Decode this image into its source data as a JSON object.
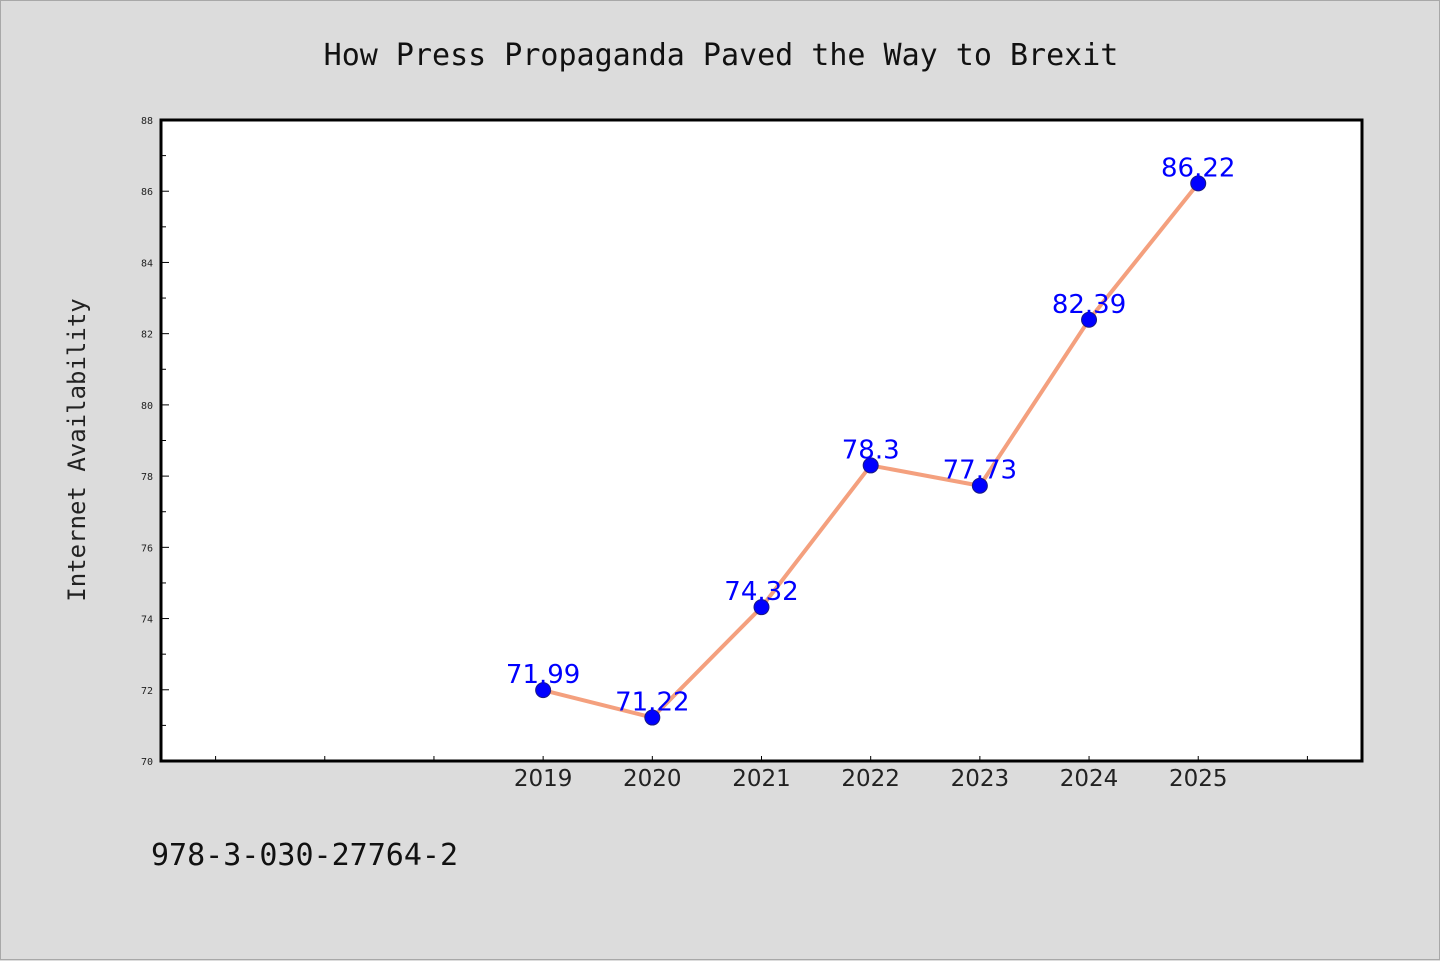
{
  "chart_data": {
    "type": "line",
    "title": "How Press Propaganda Paved the Way to Brexit",
    "xlabel": "",
    "ylabel": "Internet Availability",
    "x": [
      2019,
      2020,
      2021,
      2022,
      2023,
      2024,
      2025
    ],
    "x_tick_labels": [
      "2019",
      "2020",
      "2021",
      "2022",
      "2023",
      "2024",
      "2025"
    ],
    "xlim": [
      2015.5,
      2026.5
    ],
    "ylim": [
      70,
      88
    ],
    "y_ticks": [
      70,
      72,
      74,
      76,
      78,
      80,
      82,
      84,
      86,
      88
    ],
    "series": [
      {
        "values": [
          71.99,
          71.22,
          74.32,
          78.3,
          77.73,
          82.39,
          86.22
        ],
        "labels": [
          "71.99",
          "71.22",
          "74.32",
          "78.3",
          "77.73",
          "82.39",
          "86.22"
        ],
        "line_color": "#f4a07e",
        "marker_color": "#0000ff"
      }
    ],
    "grid": false,
    "legend": "none",
    "annotation": "978-3-030-27764-2",
    "colors": {
      "background": "#dcdcdc",
      "plot_background": "#ffffff",
      "axis": "#000000",
      "text": "#222222",
      "data_label": "#0000ff"
    }
  }
}
